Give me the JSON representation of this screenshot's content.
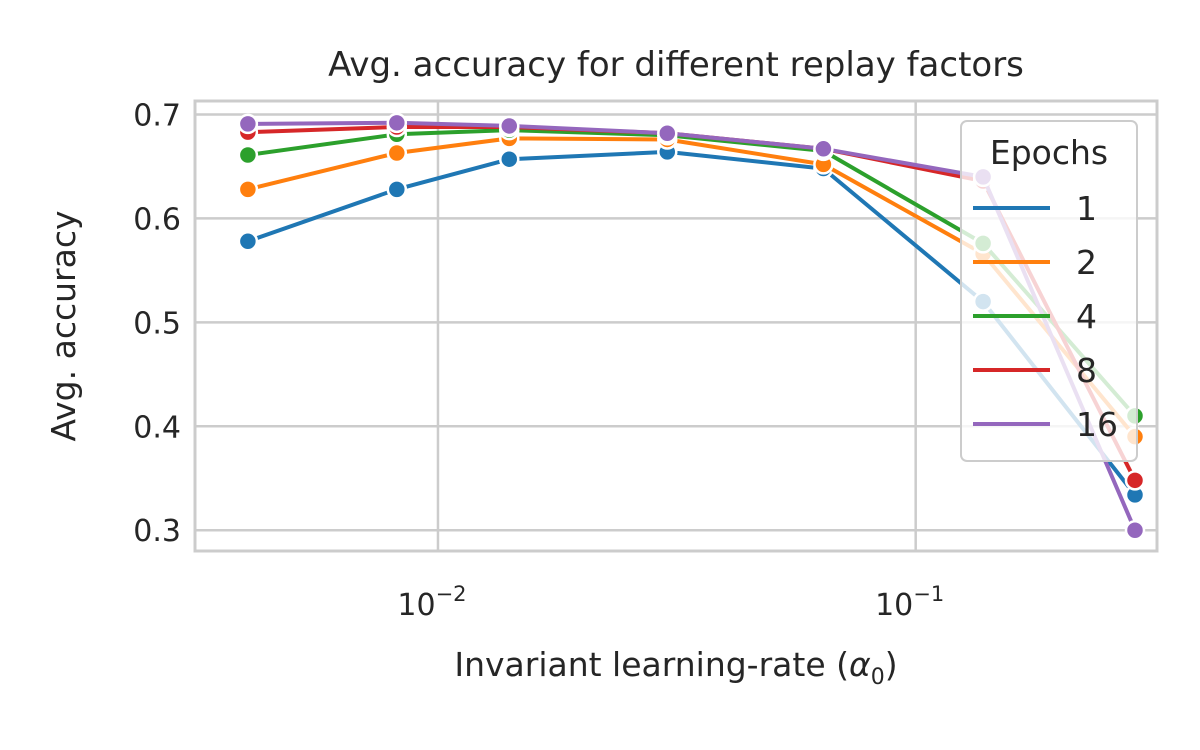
{
  "chart_data": {
    "type": "line",
    "title": "Avg. accuracy for different replay factors",
    "xlabel_prefix": "Invariant learning-rate (",
    "xlabel_symbol": "α",
    "xlabel_subscript": "0",
    "xlabel_suffix": ")",
    "ylabel": "Avg. accuracy",
    "xscale": "log",
    "xlim": [
      0.0031,
      0.32
    ],
    "ylim": [
      0.28,
      0.713
    ],
    "x": [
      0.004,
      0.0082,
      0.0141,
      0.0302,
      0.0641,
      0.1384,
      0.2878
    ],
    "yticks": [
      {
        "value": 0.3,
        "label": "0.3"
      },
      {
        "value": 0.4,
        "label": "0.4"
      },
      {
        "value": 0.5,
        "label": "0.5"
      },
      {
        "value": 0.6,
        "label": "0.6"
      },
      {
        "value": 0.7,
        "label": "0.7"
      }
    ],
    "xticks": [
      {
        "value": 0.01,
        "base": "10",
        "exp": "−2"
      },
      {
        "value": 0.1,
        "base": "10",
        "exp": "−1"
      }
    ],
    "grid": true,
    "legend": {
      "title": "Epochs",
      "position": "upper-right"
    },
    "series": [
      {
        "name": "1",
        "color": "#1f77b4",
        "values": [
          0.578,
          0.628,
          0.657,
          0.664,
          0.648,
          0.52,
          0.334
        ]
      },
      {
        "name": "2",
        "color": "#ff7f0e",
        "values": [
          0.628,
          0.663,
          0.677,
          0.676,
          0.652,
          0.566,
          0.39
        ]
      },
      {
        "name": "4",
        "color": "#2ca02c",
        "values": [
          0.661,
          0.681,
          0.685,
          0.68,
          0.665,
          0.576,
          0.41
        ]
      },
      {
        "name": "8",
        "color": "#d62728",
        "values": [
          0.683,
          0.688,
          0.688,
          0.682,
          0.667,
          0.636,
          0.348
        ]
      },
      {
        "name": "16",
        "color": "#9467bd",
        "values": [
          0.691,
          0.692,
          0.689,
          0.682,
          0.667,
          0.64,
          0.3
        ]
      }
    ]
  }
}
